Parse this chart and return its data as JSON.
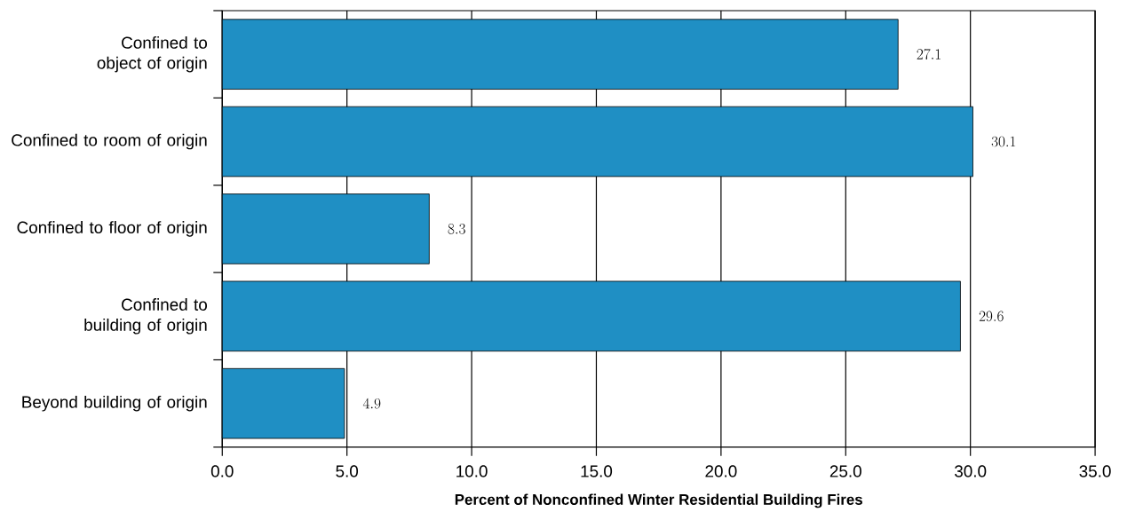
{
  "chart_data": {
    "type": "bar",
    "orientation": "horizontal",
    "categories": [
      "Confined to object of origin",
      "Confined to room of origin",
      "Confined to floor of origin",
      "Confined to building of origin",
      "Beyond building of origin"
    ],
    "values": [
      27.1,
      30.1,
      8.3,
      29.6,
      4.9
    ],
    "color": "#1f8fc4",
    "xlabel": "Percent of Nonconfined Winter Residential Building Fires",
    "xlim": [
      0,
      35
    ],
    "xticks": [
      {
        "value": 0,
        "label": "0.0"
      },
      {
        "value": 5,
        "label": "5.0"
      },
      {
        "value": 10,
        "label": "10.0"
      },
      {
        "value": 15,
        "label": "15.0"
      },
      {
        "value": 20,
        "label": "20.0"
      },
      {
        "value": 25,
        "label": "25.0"
      },
      {
        "value": 30,
        "label": "30.0"
      },
      {
        "value": 35,
        "label": "35.0"
      }
    ],
    "grid": "x",
    "data_labels": true
  }
}
